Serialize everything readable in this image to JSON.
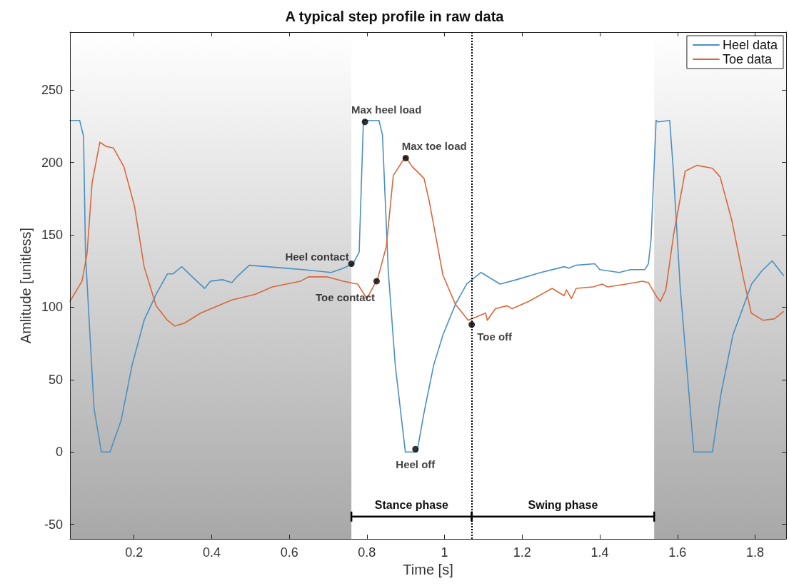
{
  "chart_data": {
    "type": "line",
    "title": "A typical step profile in raw data",
    "xlabel": "Time [s]",
    "ylabel": "Amlitude [unitless]",
    "xlim": [
      0.035,
      1.88
    ],
    "ylim": [
      -60,
      290
    ],
    "xticks": [
      0.2,
      0.4,
      0.6,
      0.8,
      1,
      1.2,
      1.4,
      1.6,
      1.8
    ],
    "yticks": [
      -50,
      0,
      50,
      100,
      150,
      200,
      250
    ],
    "grid": false,
    "legend": "top right",
    "marker": "none",
    "line_style": "solid",
    "series": [
      {
        "name": "Heel data",
        "color": "#4a90c2",
        "x": [
          0.035,
          0.06,
          0.07,
          0.075,
          0.085,
          0.097,
          0.116,
          0.138,
          0.167,
          0.195,
          0.226,
          0.257,
          0.286,
          0.3,
          0.323,
          0.354,
          0.382,
          0.397,
          0.428,
          0.452,
          0.465,
          0.497,
          0.543,
          0.587,
          0.636,
          0.708,
          0.739,
          0.764,
          0.78,
          0.791,
          0.831,
          0.84,
          0.855,
          0.873,
          0.899,
          0.929,
          0.947,
          0.972,
          0.996,
          1.028,
          1.057,
          1.094,
          1.143,
          1.185,
          1.248,
          1.308,
          1.32,
          1.339,
          1.387,
          1.4,
          1.45,
          1.479,
          1.516,
          1.525,
          1.532,
          1.545,
          1.55,
          1.58,
          1.589,
          1.607,
          1.642,
          1.69,
          1.712,
          1.743,
          1.761,
          1.791,
          1.817,
          1.844,
          1.873
        ],
        "values": [
          229,
          229,
          218,
          137,
          88,
          30,
          0,
          0,
          22,
          60,
          91,
          109,
          123,
          123,
          128,
          120,
          113,
          118,
          119,
          117,
          121,
          129,
          128,
          127,
          126,
          124,
          127,
          130,
          138,
          229,
          229,
          219,
          125,
          60,
          0,
          0,
          27,
          60,
          81,
          102,
          116,
          124,
          116,
          119,
          124,
          128,
          127,
          129,
          130,
          126,
          124,
          126,
          126,
          130,
          147,
          229,
          228,
          229,
          196,
          114,
          0,
          0,
          40,
          81,
          94,
          116,
          125,
          132,
          122
        ]
      },
      {
        "name": "Toe data",
        "color": "#d9673a",
        "x": [
          0.035,
          0.066,
          0.079,
          0.092,
          0.112,
          0.128,
          0.147,
          0.174,
          0.201,
          0.226,
          0.257,
          0.286,
          0.305,
          0.33,
          0.372,
          0.452,
          0.513,
          0.556,
          0.629,
          0.65,
          0.697,
          0.739,
          0.776,
          0.8,
          0.828,
          0.85,
          0.868,
          0.899,
          0.917,
          0.947,
          0.96,
          0.996,
          1.028,
          1.061,
          1.106,
          1.11,
          1.131,
          1.161,
          1.174,
          1.217,
          1.277,
          1.308,
          1.314,
          1.327,
          1.339,
          1.382,
          1.406,
          1.42,
          1.468,
          1.51,
          1.525,
          1.547,
          1.556,
          1.57,
          1.59,
          1.62,
          1.65,
          1.69,
          1.71,
          1.74,
          1.77,
          1.79,
          1.82,
          1.85,
          1.873
        ],
        "values": [
          104,
          118,
          137,
          186,
          214,
          211,
          210,
          197,
          170,
          128,
          101,
          91,
          87,
          89,
          96,
          105,
          109,
          114,
          118,
          121,
          121,
          118,
          116,
          106,
          120,
          142,
          191,
          204,
          197,
          189,
          174,
          122,
          102,
          91,
          96,
          91,
          99,
          101,
          99,
          104,
          113,
          108,
          112,
          106,
          113,
          114,
          116,
          114,
          116,
          118,
          117,
          107,
          104,
          112,
          150,
          194,
          198,
          196,
          190,
          160,
          120,
          96,
          91,
          92,
          97
        ]
      }
    ],
    "annotations": [
      {
        "text": "Heel contact",
        "x": 0.76,
        "y": 130
      },
      {
        "text": "Max heel load",
        "x": 0.795,
        "y": 228
      },
      {
        "text": "Toe contact",
        "x": 0.825,
        "y": 118
      },
      {
        "text": "Max toe load",
        "x": 0.9,
        "y": 203
      },
      {
        "text": "Heel off",
        "x": 0.925,
        "y": 2
      },
      {
        "text": "Toe off",
        "x": 1.07,
        "y": 88
      },
      "Stance phase",
      "Swing phase"
    ],
    "ref_lines": [
      {
        "axis": "x",
        "value": 1.07,
        "line_style": "dotted",
        "color": "#000000"
      }
    ],
    "bands": [
      {
        "axis": "x",
        "from": 0.035,
        "to": 0.76,
        "color": "#a8a8a8"
      },
      {
        "axis": "x",
        "from": 1.54,
        "to": 1.88,
        "color": "#a8a8a8"
      }
    ]
  }
}
